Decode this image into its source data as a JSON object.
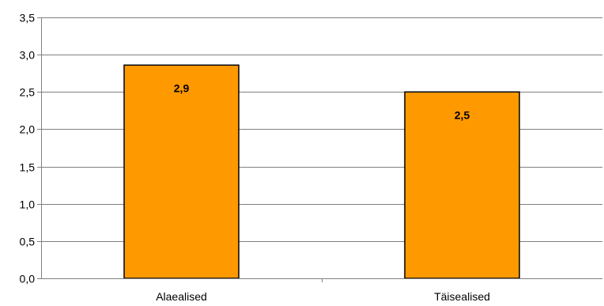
{
  "chart_data": {
    "type": "bar",
    "title": "",
    "xlabel": "",
    "ylabel": "",
    "categories": [
      "Alaealised",
      "Täisealised"
    ],
    "values": [
      2.86,
      2.5
    ],
    "data_labels": [
      "2,9",
      "2,5"
    ],
    "ylim": [
      0,
      3.5
    ],
    "yticks": [
      0,
      0.5,
      1.0,
      1.5,
      2.0,
      2.5,
      3.0,
      3.5
    ],
    "ytick_labels": [
      "0,0",
      "0,5",
      "1,0",
      "1,5",
      "2,0",
      "2,5",
      "3,0",
      "3,5"
    ],
    "grid": true,
    "legend": "none",
    "colors": {
      "bar_fill": "#FF9900",
      "bar_stroke": "#000000",
      "grid": "#808080",
      "axis": "#808080"
    }
  }
}
